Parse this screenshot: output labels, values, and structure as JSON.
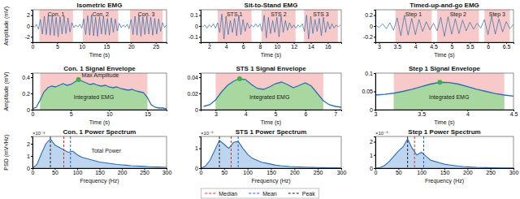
{
  "chart_data": [
    {
      "type": "line",
      "title": "Isometric EMG",
      "xlabel": "Time (s)",
      "ylabel": "Amplitude (mV)",
      "color": "#2a6fb0",
      "xlim": [
        0,
        27.2
      ],
      "xticks": [
        0,
        5,
        10,
        15,
        20,
        25
      ],
      "ylim": [
        -3,
        3
      ],
      "yticks": [
        -2,
        0,
        2
      ],
      "regions": [
        {
          "label": "Con. 1",
          "start": 1.4,
          "end": 8.2
        },
        {
          "label": "Con. 2",
          "start": 10.2,
          "end": 17.4
        },
        {
          "label": "Con. 3",
          "start": 19.8,
          "end": 26.4
        }
      ],
      "x": [
        0,
        0.4,
        0.8,
        1.2,
        1.6,
        2.0,
        2.4,
        2.8,
        3.2,
        3.6,
        4.0,
        4.4,
        4.8,
        5.2,
        5.6,
        6.0,
        6.4,
        6.8,
        7.2,
        7.6,
        8.0,
        8.4,
        8.8,
        9.2,
        9.6,
        10.0,
        10.4,
        10.8,
        11.2,
        11.6,
        12.0,
        12.4,
        12.8,
        13.2,
        13.6,
        14.0,
        14.4,
        14.8,
        15.2,
        15.6,
        16.0,
        16.4,
        16.8,
        17.2,
        17.6,
        18.0,
        18.4,
        18.8,
        19.2,
        19.6,
        20.0,
        20.4,
        20.8,
        21.2,
        21.6,
        22.0,
        22.4,
        22.8,
        23.2,
        23.6,
        24.0,
        24.4,
        24.8,
        25.2,
        25.6,
        26.0,
        26.4,
        26.8,
        27.2
      ],
      "values": [
        0.1,
        -0.2,
        0.3,
        -0.6,
        1.2,
        -1.5,
        1.8,
        -1.6,
        2.0,
        -1.7,
        1.9,
        -1.8,
        1.6,
        -2.0,
        1.7,
        -1.5,
        1.8,
        -1.4,
        1.5,
        -1.1,
        0.6,
        -0.3,
        0.2,
        -0.2,
        0.3,
        -0.4,
        1.3,
        -1.6,
        1.9,
        -1.7,
        2.1,
        -1.8,
        1.6,
        -1.9,
        1.7,
        -1.5,
        1.8,
        -1.6,
        1.4,
        -1.7,
        1.5,
        -1.2,
        1.3,
        -0.9,
        0.5,
        -0.3,
        0.2,
        -0.2,
        0.3,
        -0.5,
        1.2,
        -1.6,
        1.8,
        -1.7,
        2.0,
        -1.9,
        1.7,
        -1.6,
        1.8,
        -1.5,
        1.6,
        -1.7,
        1.4,
        -1.5,
        1.3,
        -1.0,
        0.6,
        -0.3,
        0.2
      ]
    },
    {
      "type": "line",
      "title": "Sit-to-Stand EMG",
      "xlabel": "Time (s)",
      "color": "#2a6fb0",
      "xlim": [
        1,
        17.6
      ],
      "xticks": [
        2,
        4,
        6,
        8,
        10,
        12,
        14,
        16
      ],
      "ylim": [
        -0.15,
        0.15
      ],
      "yticks": [
        -0.1,
        0,
        0.1
      ],
      "regions": [
        {
          "label": "STS 1",
          "start": 3,
          "end": 7
        },
        {
          "label": "STS 2",
          "start": 8.2,
          "end": 12.2
        },
        {
          "label": "STS 3",
          "start": 13.2,
          "end": 17.2
        }
      ],
      "x": [
        1,
        1.25,
        1.5,
        1.75,
        2,
        2.25,
        2.5,
        2.75,
        3,
        3.25,
        3.5,
        3.75,
        4,
        4.25,
        4.5,
        4.75,
        5,
        5.25,
        5.5,
        5.75,
        6,
        6.25,
        6.5,
        6.75,
        7,
        7.25,
        7.5,
        7.75,
        8,
        8.25,
        8.5,
        8.75,
        9,
        9.25,
        9.5,
        9.75,
        10,
        10.25,
        10.5,
        10.75,
        11,
        11.25,
        11.5,
        11.75,
        12,
        12.25,
        12.5,
        12.75,
        13,
        13.25,
        13.5,
        13.75,
        14,
        14.25,
        14.5,
        14.75,
        15,
        15.25,
        15.5,
        15.75,
        16,
        16.25,
        16.5,
        16.75,
        17,
        17.25,
        17.5
      ],
      "values": [
        0.01,
        -0.01,
        0.01,
        -0.02,
        0.01,
        -0.01,
        0.02,
        -0.02,
        0.03,
        -0.06,
        0.11,
        -0.12,
        0.09,
        -0.08,
        0.05,
        -0.06,
        0.07,
        -0.09,
        0.1,
        -0.08,
        0.06,
        -0.05,
        0.03,
        -0.02,
        0.01,
        -0.01,
        0.02,
        -0.01,
        0.02,
        -0.05,
        0.1,
        -0.11,
        0.08,
        -0.07,
        0.05,
        -0.06,
        0.08,
        -0.1,
        0.09,
        -0.06,
        0.05,
        -0.04,
        0.03,
        -0.02,
        0.01,
        -0.02,
        0.01,
        -0.01,
        0.02,
        -0.05,
        0.1,
        -0.12,
        0.09,
        -0.07,
        0.06,
        -0.05,
        0.07,
        -0.09,
        0.08,
        -0.06,
        0.04,
        -0.03,
        0.02,
        -0.02,
        0.01,
        -0.01,
        0.01
      ]
    },
    {
      "type": "line",
      "title": "Timed-up-and-go EMG",
      "xlabel": "Time (s)",
      "color": "#2a6fb0",
      "xlim": [
        2.9,
        6.7
      ],
      "xticks": [
        3,
        3.5,
        4,
        4.5,
        5,
        5.5,
        6,
        6.5
      ],
      "ylim": [
        -0.3,
        0.3
      ],
      "yticks": [
        -0.2,
        0,
        0.2
      ],
      "regions": [
        {
          "label": "Step 1",
          "start": 3.45,
          "end": 4.45
        },
        {
          "label": "Step 2",
          "start": 4.6,
          "end": 5.75
        },
        {
          "label": "Step 3",
          "start": 5.9,
          "end": 6.6
        }
      ],
      "x": [
        2.9,
        3.0,
        3.1,
        3.2,
        3.3,
        3.4,
        3.5,
        3.6,
        3.7,
        3.8,
        3.9,
        4.0,
        4.1,
        4.2,
        4.3,
        4.4,
        4.5,
        4.6,
        4.7,
        4.8,
        4.9,
        5.0,
        5.1,
        5.2,
        5.3,
        5.4,
        5.5,
        5.6,
        5.7,
        5.8,
        5.9,
        6.0,
        6.1,
        6.2,
        6.3,
        6.4,
        6.5,
        6.6,
        6.7
      ],
      "values": [
        0.02,
        -0.03,
        0.04,
        -0.05,
        0.06,
        -0.08,
        0.15,
        -0.18,
        0.2,
        -0.17,
        0.14,
        -0.16,
        0.12,
        -0.1,
        0.08,
        -0.07,
        0.05,
        -0.09,
        0.16,
        -0.19,
        0.17,
        -0.15,
        0.13,
        -0.14,
        0.11,
        -0.09,
        0.07,
        -0.06,
        0.05,
        -0.04,
        0.12,
        -0.16,
        0.18,
        -0.15,
        0.13,
        -0.11,
        0.08,
        -0.05,
        0.03
      ]
    },
    {
      "type": "envelope",
      "title": "Con. 1 Signal Envelope",
      "xlabel": "Time (s)",
      "ylabel": "Amplitude (mV)",
      "color": "#2a6fb0",
      "xlim": [
        0,
        17.5
      ],
      "xticks": [
        0,
        5,
        10,
        15
      ],
      "ylim": [
        0,
        0.45
      ],
      "yticks": [
        0,
        0.2,
        0.4
      ],
      "region": [
        1,
        15
      ],
      "max_point": {
        "x": 6,
        "y": 0.37
      },
      "max_label": "Max Amplitude",
      "area_label": "Integrated EMG",
      "x": [
        0,
        0.5,
        1,
        1.5,
        2,
        2.5,
        3,
        3.5,
        4,
        4.5,
        5,
        5.5,
        6,
        6.5,
        7,
        7.5,
        8,
        8.5,
        9,
        9.5,
        10,
        10.5,
        11,
        11.5,
        12,
        12.5,
        13,
        13.5,
        14,
        14.5,
        15,
        15.5,
        16,
        16.5,
        17,
        17.5
      ],
      "values": [
        0.01,
        0.03,
        0.12,
        0.22,
        0.27,
        0.29,
        0.28,
        0.3,
        0.32,
        0.3,
        0.31,
        0.34,
        0.37,
        0.35,
        0.33,
        0.31,
        0.32,
        0.3,
        0.29,
        0.3,
        0.28,
        0.27,
        0.28,
        0.26,
        0.25,
        0.24,
        0.25,
        0.23,
        0.22,
        0.21,
        0.15,
        0.06,
        0.03,
        0.02,
        0.02,
        0.01
      ]
    },
    {
      "type": "envelope",
      "title": "STS 1 Signal Envelope",
      "xlabel": "Time (s)",
      "color": "#2a6fb0",
      "xlim": [
        2.5,
        7.2
      ],
      "xticks": [
        3,
        4,
        5,
        6,
        7
      ],
      "ylim": [
        0,
        0.045
      ],
      "yticks": [
        0,
        0.02,
        0.04
      ],
      "region": [
        3,
        6.6
      ],
      "max_point": {
        "x": 3.8,
        "y": 0.038
      },
      "area_label": "Integrated EMG",
      "x": [
        2.6,
        2.8,
        3.0,
        3.2,
        3.4,
        3.6,
        3.8,
        4.0,
        4.2,
        4.4,
        4.6,
        4.8,
        5.0,
        5.2,
        5.4,
        5.6,
        5.8,
        6.0,
        6.2,
        6.4,
        6.6,
        6.8,
        7.0,
        7.2
      ],
      "values": [
        0.004,
        0.006,
        0.012,
        0.022,
        0.03,
        0.035,
        0.038,
        0.037,
        0.031,
        0.026,
        0.025,
        0.028,
        0.032,
        0.034,
        0.031,
        0.027,
        0.03,
        0.033,
        0.029,
        0.02,
        0.011,
        0.006,
        0.004,
        0.003
      ]
    },
    {
      "type": "envelope",
      "title": "Step 1 Signal Envelope",
      "xlabel": "Time (s)",
      "color": "#2a6fb0",
      "xlim": [
        3.0,
        4.5
      ],
      "xticks": [
        3,
        3.5,
        4,
        4.5
      ],
      "ylim": [
        0,
        0.1
      ],
      "yticks": [
        0,
        0.05,
        0.1
      ],
      "region": [
        3.2,
        4.4
      ],
      "max_point": {
        "x": 3.7,
        "y": 0.075
      },
      "area_label": "Integrated EMG",
      "x": [
        3.0,
        3.1,
        3.2,
        3.3,
        3.4,
        3.5,
        3.6,
        3.7,
        3.8,
        3.9,
        4.0,
        4.1,
        4.2,
        4.3,
        4.4,
        4.5
      ],
      "values": [
        0.04,
        0.042,
        0.045,
        0.05,
        0.056,
        0.063,
        0.07,
        0.075,
        0.074,
        0.07,
        0.063,
        0.056,
        0.05,
        0.044,
        0.04,
        0.037
      ]
    },
    {
      "type": "spectrum",
      "title": "Con. 1 Power Spectrum",
      "xlabel": "Frequency (Hz)",
      "ylabel": "PSD (mV²/Hz)",
      "y_multiplier": "×10⁻³",
      "color": "#2a6fb0",
      "xlim": [
        0,
        300
      ],
      "xticks": [
        0,
        50,
        100,
        150,
        200,
        250,
        300
      ],
      "ylim": [
        0,
        2.6
      ],
      "yticks": [
        0,
        1,
        2
      ],
      "fill_label": "Total Power",
      "median": 70,
      "mean": 85,
      "peak": 40,
      "x": [
        0,
        10,
        20,
        30,
        40,
        50,
        60,
        70,
        80,
        90,
        100,
        110,
        120,
        130,
        140,
        150,
        160,
        170,
        180,
        190,
        200,
        210,
        220,
        230,
        240,
        250,
        260,
        270,
        280,
        290,
        300
      ],
      "values": [
        0,
        0.3,
        1.2,
        2.0,
        2.4,
        1.9,
        1.7,
        1.5,
        1.3,
        1.4,
        1.1,
        0.9,
        0.8,
        0.7,
        0.6,
        0.5,
        0.45,
        0.4,
        0.35,
        0.3,
        0.27,
        0.24,
        0.2,
        0.18,
        0.16,
        0.14,
        0.12,
        0.1,
        0.09,
        0.08,
        0.07
      ]
    },
    {
      "type": "spectrum",
      "title": "STS 1 Power Spectrum",
      "xlabel": "Frequency (Hz)",
      "y_multiplier": "×10⁻⁵",
      "color": "#2a6fb0",
      "xlim": [
        0,
        300
      ],
      "xticks": [
        0,
        50,
        100,
        150,
        200,
        250,
        300
      ],
      "ylim": [
        0,
        1.6
      ],
      "yticks": [
        0,
        1
      ],
      "median": 65,
      "mean": 80,
      "peak": 40,
      "x": [
        0,
        10,
        20,
        30,
        40,
        50,
        60,
        70,
        80,
        90,
        100,
        110,
        120,
        130,
        140,
        150,
        160,
        170,
        180,
        190,
        200,
        210,
        220,
        230,
        240,
        250,
        260,
        270,
        280,
        290,
        300
      ],
      "values": [
        0,
        0.1,
        0.4,
        0.9,
        1.4,
        1.2,
        1.0,
        1.3,
        1.35,
        1.0,
        0.7,
        0.5,
        0.4,
        0.3,
        0.25,
        0.2,
        0.15,
        0.12,
        0.1,
        0.08,
        0.07,
        0.06,
        0.05,
        0.04,
        0.035,
        0.03,
        0.025,
        0.02,
        0.02,
        0.015,
        0.01
      ]
    },
    {
      "type": "spectrum",
      "title": "Step 1 Power Spectrum",
      "xlabel": "Frequency (Hz)",
      "y_multiplier": "×10⁻⁶",
      "color": "#2a6fb0",
      "xlim": [
        0,
        300
      ],
      "xticks": [
        0,
        50,
        100,
        150,
        200,
        250,
        300
      ],
      "ylim": [
        0,
        2.4
      ],
      "yticks": [
        0,
        1,
        2
      ],
      "median": 85,
      "mean": 105,
      "peak": 70,
      "x": [
        0,
        10,
        20,
        30,
        40,
        50,
        60,
        70,
        80,
        90,
        100,
        110,
        120,
        130,
        140,
        150,
        160,
        170,
        180,
        190,
        200,
        210,
        220,
        230,
        240,
        250,
        260,
        270,
        280,
        290,
        300
      ],
      "values": [
        0,
        0.05,
        0.2,
        0.5,
        0.9,
        1.3,
        1.6,
        2.2,
        1.5,
        1.0,
        1.2,
        0.9,
        0.6,
        0.5,
        0.4,
        0.3,
        0.25,
        0.2,
        0.15,
        0.12,
        0.1,
        0.08,
        0.06,
        0.05,
        0.04,
        0.03,
        0.03,
        0.02,
        0.02,
        0.01,
        0.01
      ]
    },
    {
      "type": "legend",
      "items": [
        {
          "name": "Median",
          "color": "#e0302a",
          "line_style": "dashed"
        },
        {
          "name": "Mean",
          "color": "#2060e0",
          "line_style": "dashed"
        },
        {
          "name": "Peak",
          "color": "#222222",
          "line_style": "dashed"
        }
      ]
    }
  ]
}
